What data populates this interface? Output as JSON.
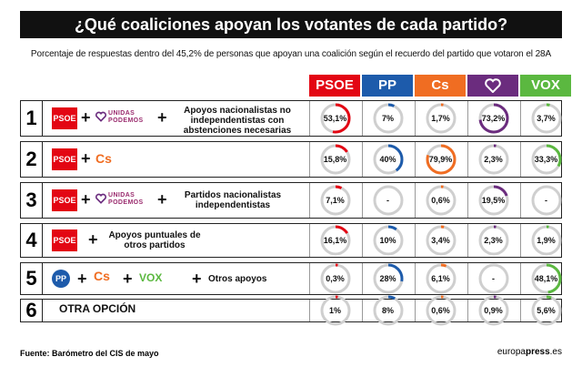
{
  "title": "¿Qué coaliciones apoyan los votantes de cada partido?",
  "subtitle": "Porcentaje de respuestas dentro del 45,2% de personas que apoyan una coalición según el recuerdo del partido que votaron el 28A",
  "footer": {
    "source": "Fuente: Barómetro del CIS de mayo",
    "brand_a": "europa",
    "brand_b": "press",
    "brand_c": ".es"
  },
  "party_colors": {
    "PSOE": "#e30613",
    "PP": "#1d5bab",
    "Cs": "#f06d22",
    "UP": "#6b2c7e",
    "VOX": "#5bb840"
  },
  "logos": {
    "psoe": "PSOE",
    "up_line1": "UNIDAS",
    "up_line2": "PODEMOS",
    "cs": "Cs",
    "vox": "VOX",
    "pp": "PP",
    "plus": "+"
  },
  "chart_data": {
    "type": "table",
    "columns": [
      "PSOE",
      "PP",
      "Cs",
      "UP",
      "VOX"
    ],
    "rows": [
      {
        "num": "1",
        "label": "Apoyos nacionalistas no independentistas con abstenciones necesarias",
        "values": [
          53.1,
          7,
          1.7,
          73.2,
          3.7
        ],
        "display": [
          "53,1%",
          "7%",
          "1,7%",
          "73,2%",
          "3,7%"
        ]
      },
      {
        "num": "2",
        "label": "",
        "values": [
          15.8,
          40,
          79.9,
          2.3,
          33.3
        ],
        "display": [
          "15,8%",
          "40%",
          "79,9%",
          "2,3%",
          "33,3%"
        ]
      },
      {
        "num": "3",
        "label": "Partidos nacionalistas independentistas",
        "values": [
          7.1,
          null,
          0.6,
          19.5,
          null
        ],
        "display": [
          "7,1%",
          "-",
          "0,6%",
          "19,5%",
          "-"
        ]
      },
      {
        "num": "4",
        "label": "Apoyos puntuales de otros partidos",
        "values": [
          16.1,
          10,
          3.4,
          2.3,
          1.9
        ],
        "display": [
          "16,1%",
          "10%",
          "3,4%",
          "2,3%",
          "1,9%"
        ]
      },
      {
        "num": "5",
        "label": "Otros apoyos",
        "values": [
          0.3,
          28,
          6.1,
          null,
          48.1
        ],
        "display": [
          "0,3%",
          "28%",
          "6,1%",
          "-",
          "48,1%"
        ]
      },
      {
        "num": "6",
        "label": "OTRA OPCIÓN",
        "values": [
          1,
          8,
          0.6,
          0.9,
          5.6
        ],
        "display": [
          "1%",
          "8%",
          "0,6%",
          "0,9%",
          "5,6%"
        ]
      }
    ]
  }
}
